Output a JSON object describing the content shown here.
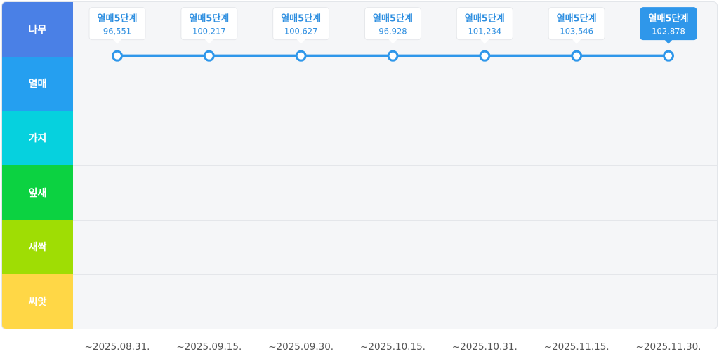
{
  "chart_data": {
    "type": "line",
    "y_levels": [
      {
        "label": "나무",
        "color": "#4a80e6"
      },
      {
        "label": "열매",
        "color": "#259ff0"
      },
      {
        "label": "가지",
        "color": "#06d1de"
      },
      {
        "label": "잎새",
        "color": "#0cd241"
      },
      {
        "label": "새싹",
        "color": "#9fdd04"
      },
      {
        "label": "씨앗",
        "color": "#ffd746"
      }
    ],
    "x": [
      "~2025.08.31.",
      "~2025.09.15.",
      "~2025.09.30.",
      "~2025.10.15.",
      "~2025.10.31.",
      "~2025.11.15.",
      "~2025.11.30."
    ],
    "series": [
      {
        "level": "열매",
        "stage_labels": [
          "열매5단계",
          "열매5단계",
          "열매5단계",
          "열매5단계",
          "열매5단계",
          "열매5단계",
          "열매5단계"
        ],
        "values": [
          96551,
          100217,
          100627,
          96928,
          101234,
          103546,
          102878
        ],
        "value_labels": [
          "96,551",
          "100,217",
          "100,627",
          "96,928",
          "101,234",
          "103,546",
          "102,878"
        ]
      }
    ],
    "highlighted_index": 6,
    "line_color": "#2f97ea",
    "grid": true
  }
}
